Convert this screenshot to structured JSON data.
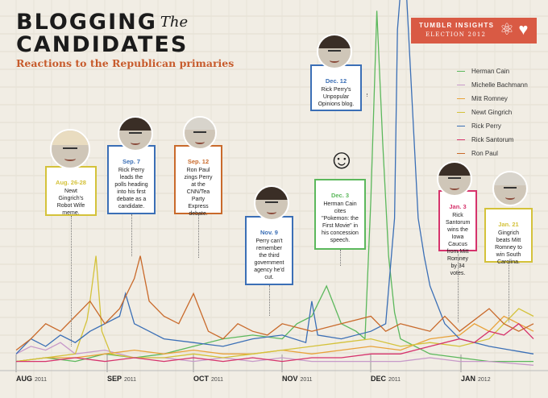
{
  "header": {
    "title_line1": "BLOGGING",
    "title_the": "The",
    "title_line2": "CANDIDATES",
    "subtitle": "Reactions to the Republican primaries"
  },
  "brand": {
    "line1": "TUMBLR INSIGHTS",
    "line2": "ELECTION 2012",
    "icons": "⚛ ♥"
  },
  "legend": [
    {
      "name": "Herman Cain",
      "color": "#5cb85c"
    },
    {
      "name": "Michelle Bachmann",
      "color": "#c79ac9"
    },
    {
      "name": "Mitt Romney",
      "color": "#e8a23a"
    },
    {
      "name": "Newt Gingrich",
      "color": "#d4c23a"
    },
    {
      "name": "Rick Perry",
      "color": "#3b6fb6"
    },
    {
      "name": "Rick Santorum",
      "color": "#d6336c"
    },
    {
      "name": "Ron Paul",
      "color": "#c96a2b"
    }
  ],
  "annotations": [
    {
      "date": "Aug. 26-28",
      "text": "Newt Gingrich's Robot Wife meme.",
      "color": "#d4c23a"
    },
    {
      "date": "Sep. 7",
      "text": "Rick Perry leads the polls heading into his first debate as a candidate.",
      "color": "#3b6fb6"
    },
    {
      "date": "Sep. 12",
      "text": "Ron Paul zings Perry at the CNN/Tea Party Express debate.",
      "color": "#c96a2b"
    },
    {
      "date": "Nov. 9",
      "text": "Perry can't remember the third government agency he'd cut.",
      "color": "#3b6fb6"
    },
    {
      "date": "Dec. 12",
      "text": "Rick Perry's Unpopular Opinions blog.",
      "color": "#3b6fb6"
    },
    {
      "date": "Dec. 3",
      "text": "Herman Cain cites \"Pokemon: the First Movie\" in his concession speech.",
      "color": "#5cb85c"
    },
    {
      "date": "Jan. 3",
      "text": "Rick Santorum wins the Iowa Caucus from Mitt Romney by 34 votes.",
      "color": "#d6336c"
    },
    {
      "date": "Jan. 21",
      "text": "Gingrich beats Mitt Romney to win South Carolina.",
      "color": "#d4c23a"
    }
  ],
  "chart_data": {
    "type": "line",
    "x_ticks": [
      {
        "month": "AUG",
        "year": "2011"
      },
      {
        "month": "SEP",
        "year": "2011"
      },
      {
        "month": "OCT",
        "year": "2011"
      },
      {
        "month": "NOV",
        "year": "2011"
      },
      {
        "month": "DEC",
        "year": "2011"
      },
      {
        "month": "JAN",
        "year": "2012"
      }
    ],
    "x_range": [
      "2011-08-01",
      "2012-01-31"
    ],
    "ylim": [
      0,
      100
    ],
    "series": [
      {
        "name": "Herman Cain",
        "color": "#5cb85c",
        "values": [
          [
            0,
            2
          ],
          [
            10,
            3
          ],
          [
            20,
            2
          ],
          [
            30,
            4
          ],
          [
            40,
            3
          ],
          [
            50,
            4
          ],
          [
            60,
            6
          ],
          [
            70,
            8
          ],
          [
            80,
            9
          ],
          [
            90,
            8
          ],
          [
            95,
            12
          ],
          [
            100,
            14
          ],
          [
            105,
            22
          ],
          [
            110,
            12
          ],
          [
            115,
            10
          ],
          [
            118,
            8
          ],
          [
            120,
            45
          ],
          [
            122,
            95
          ],
          [
            124,
            60
          ],
          [
            126,
            30
          ],
          [
            128,
            15
          ],
          [
            130,
            8
          ],
          [
            140,
            4
          ],
          [
            150,
            3
          ],
          [
            160,
            2
          ],
          [
            175,
            2
          ]
        ]
      },
      {
        "name": "Michelle Bachmann",
        "color": "#c79ac9",
        "values": [
          [
            0,
            4
          ],
          [
            5,
            6
          ],
          [
            10,
            5
          ],
          [
            15,
            7
          ],
          [
            20,
            4
          ],
          [
            30,
            5
          ],
          [
            40,
            3
          ],
          [
            50,
            3
          ],
          [
            60,
            2
          ],
          [
            70,
            3
          ],
          [
            80,
            2
          ],
          [
            90,
            3
          ],
          [
            100,
            2
          ],
          [
            110,
            2
          ],
          [
            120,
            2
          ],
          [
            130,
            2
          ],
          [
            140,
            3
          ],
          [
            150,
            2
          ],
          [
            160,
            2
          ],
          [
            175,
            1
          ]
        ]
      },
      {
        "name": "Mitt Romney",
        "color": "#e8a23a",
        "values": [
          [
            0,
            2
          ],
          [
            10,
            3
          ],
          [
            20,
            3
          ],
          [
            30,
            4
          ],
          [
            40,
            5
          ],
          [
            50,
            4
          ],
          [
            60,
            5
          ],
          [
            70,
            4
          ],
          [
            80,
            4
          ],
          [
            90,
            5
          ],
          [
            100,
            4
          ],
          [
            110,
            5
          ],
          [
            120,
            6
          ],
          [
            130,
            5
          ],
          [
            140,
            8
          ],
          [
            150,
            9
          ],
          [
            155,
            12
          ],
          [
            160,
            10
          ],
          [
            165,
            14
          ],
          [
            170,
            12
          ],
          [
            175,
            10
          ]
        ]
      },
      {
        "name": "Newt Gingrich",
        "color": "#d4c23a",
        "values": [
          [
            0,
            2
          ],
          [
            10,
            3
          ],
          [
            20,
            4
          ],
          [
            24,
            13
          ],
          [
            25,
            18
          ],
          [
            27,
            30
          ],
          [
            29,
            10
          ],
          [
            32,
            4
          ],
          [
            40,
            3
          ],
          [
            50,
            3
          ],
          [
            60,
            4
          ],
          [
            70,
            3
          ],
          [
            80,
            4
          ],
          [
            90,
            5
          ],
          [
            100,
            6
          ],
          [
            110,
            7
          ],
          [
            120,
            8
          ],
          [
            130,
            6
          ],
          [
            140,
            7
          ],
          [
            150,
            6
          ],
          [
            160,
            8
          ],
          [
            165,
            12
          ],
          [
            170,
            16
          ],
          [
            175,
            14
          ]
        ]
      },
      {
        "name": "Rick Perry",
        "color": "#3b6fb6",
        "values": [
          [
            0,
            4
          ],
          [
            5,
            8
          ],
          [
            10,
            6
          ],
          [
            15,
            9
          ],
          [
            20,
            7
          ],
          [
            25,
            10
          ],
          [
            30,
            12
          ],
          [
            35,
            14
          ],
          [
            37,
            20
          ],
          [
            40,
            12
          ],
          [
            45,
            10
          ],
          [
            50,
            8
          ],
          [
            60,
            7
          ],
          [
            70,
            6
          ],
          [
            80,
            8
          ],
          [
            90,
            9
          ],
          [
            98,
            7
          ],
          [
            100,
            18
          ],
          [
            102,
            9
          ],
          [
            110,
            8
          ],
          [
            120,
            10
          ],
          [
            125,
            12
          ],
          [
            128,
            40
          ],
          [
            129,
            90
          ],
          [
            130,
            100
          ],
          [
            131,
            100
          ],
          [
            132,
            100
          ],
          [
            134,
            70
          ],
          [
            136,
            40
          ],
          [
            138,
            30
          ],
          [
            140,
            22
          ],
          [
            145,
            12
          ],
          [
            150,
            8
          ],
          [
            160,
            6
          ],
          [
            175,
            4
          ]
        ]
      },
      {
        "name": "Rick Santorum",
        "color": "#d6336c",
        "values": [
          [
            0,
            2
          ],
          [
            10,
            2
          ],
          [
            20,
            3
          ],
          [
            30,
            2
          ],
          [
            40,
            3
          ],
          [
            50,
            2
          ],
          [
            60,
            3
          ],
          [
            70,
            2
          ],
          [
            80,
            3
          ],
          [
            90,
            2
          ],
          [
            100,
            3
          ],
          [
            110,
            3
          ],
          [
            120,
            4
          ],
          [
            130,
            4
          ],
          [
            140,
            6
          ],
          [
            150,
            8
          ],
          [
            155,
            7
          ],
          [
            160,
            10
          ],
          [
            165,
            9
          ],
          [
            170,
            12
          ],
          [
            175,
            8
          ]
        ]
      },
      {
        "name": "Ron Paul",
        "color": "#c96a2b",
        "values": [
          [
            0,
            5
          ],
          [
            5,
            8
          ],
          [
            10,
            12
          ],
          [
            15,
            10
          ],
          [
            20,
            14
          ],
          [
            25,
            18
          ],
          [
            30,
            12
          ],
          [
            35,
            16
          ],
          [
            40,
            24
          ],
          [
            42,
            30
          ],
          [
            45,
            18
          ],
          [
            50,
            14
          ],
          [
            55,
            12
          ],
          [
            60,
            20
          ],
          [
            65,
            10
          ],
          [
            70,
            8
          ],
          [
            75,
            12
          ],
          [
            80,
            10
          ],
          [
            85,
            9
          ],
          [
            90,
            12
          ],
          [
            100,
            10
          ],
          [
            110,
            12
          ],
          [
            120,
            14
          ],
          [
            125,
            10
          ],
          [
            130,
            12
          ],
          [
            140,
            10
          ],
          [
            145,
            14
          ],
          [
            150,
            10
          ],
          [
            160,
            16
          ],
          [
            165,
            12
          ],
          [
            170,
            10
          ],
          [
            175,
            12
          ]
        ]
      }
    ]
  }
}
